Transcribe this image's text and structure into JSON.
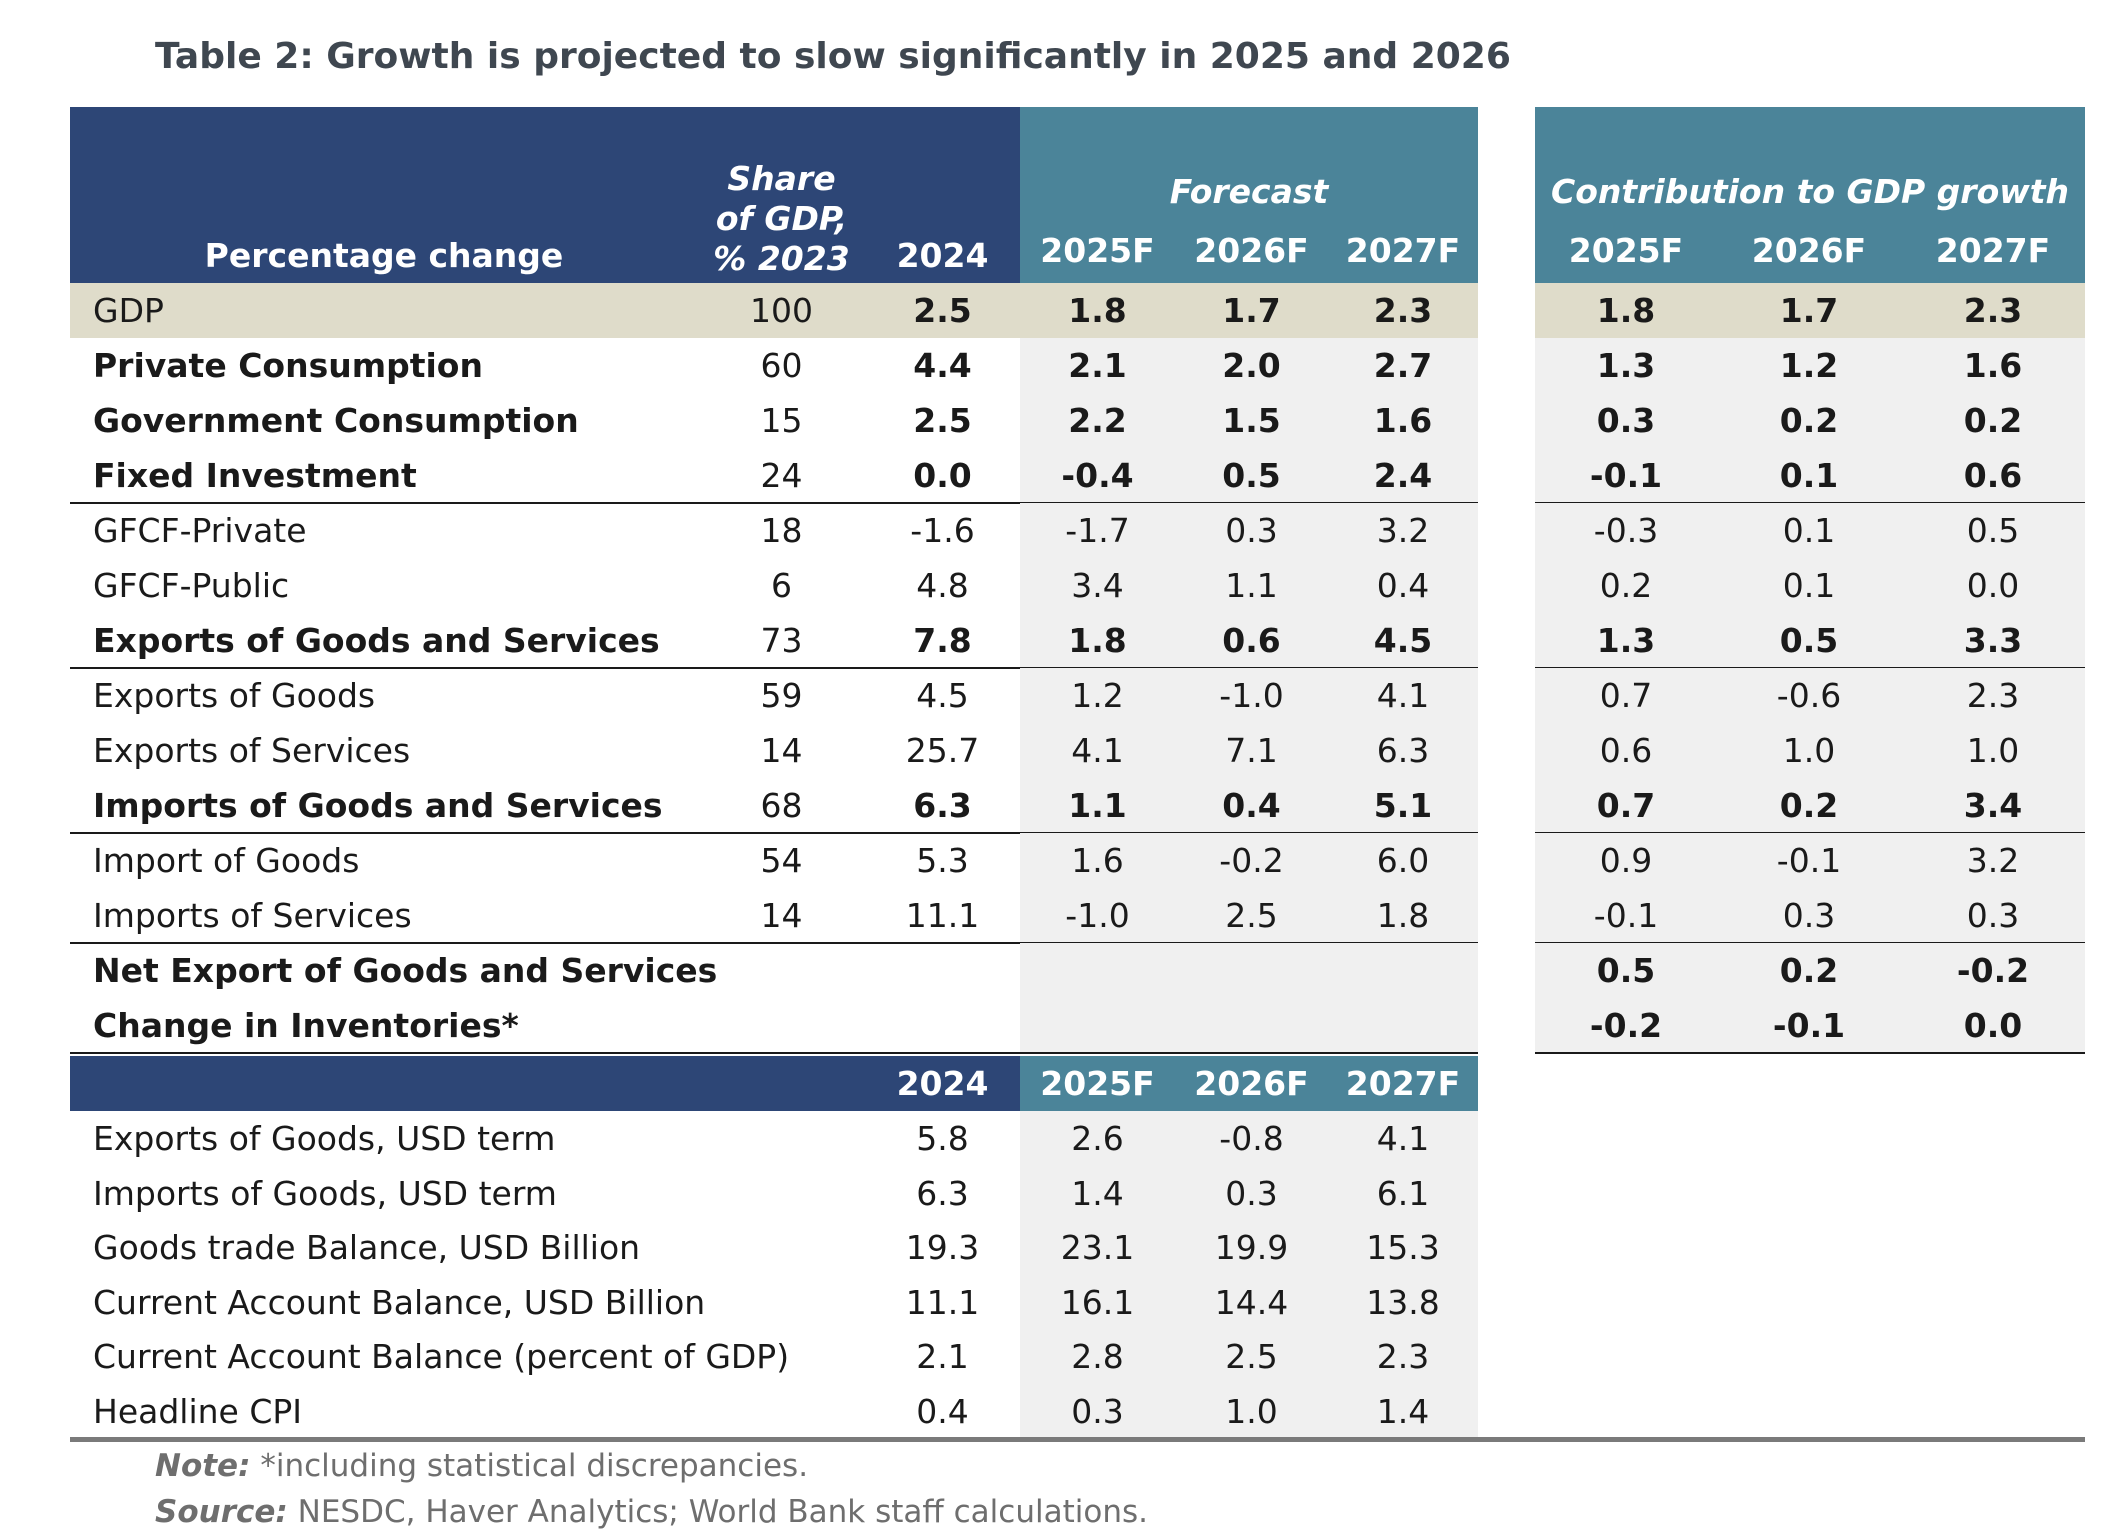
{
  "title": "Table 2: Growth is projected to slow significantly in 2025 and 2026",
  "header": {
    "percentage_change": "Percentage change",
    "share_line1": "Share",
    "share_line2": "of GDP,",
    "share_line3": "% 2023",
    "forecast": "Forecast",
    "contribution": "Contribution to GDP growth",
    "years": [
      "2024",
      "2025F",
      "2026F",
      "2027F"
    ],
    "contrib_years": [
      "2025F",
      "2026F",
      "2027F"
    ]
  },
  "rows": [
    {
      "label": "GDP",
      "share": "100",
      "v": [
        "2.5",
        "1.8",
        "1.7",
        "2.3"
      ],
      "c": [
        "1.8",
        "1.7",
        "2.3"
      ]
    },
    {
      "label": "Private Consumption",
      "share": "60",
      "v": [
        "4.4",
        "2.1",
        "2.0",
        "2.7"
      ],
      "c": [
        "1.3",
        "1.2",
        "1.6"
      ]
    },
    {
      "label": "Government Consumption",
      "share": "15",
      "v": [
        "2.5",
        "2.2",
        "1.5",
        "1.6"
      ],
      "c": [
        "0.3",
        "0.2",
        "0.2"
      ]
    },
    {
      "label": "Fixed Investment",
      "share": "24",
      "v": [
        "0.0",
        "-0.4",
        "0.5",
        "2.4"
      ],
      "c": [
        "-0.1",
        "0.1",
        "0.6"
      ]
    },
    {
      "label": "GFCF-Private",
      "share": "18",
      "v": [
        "-1.6",
        "-1.7",
        "0.3",
        "3.2"
      ],
      "c": [
        "-0.3",
        "0.1",
        "0.5"
      ]
    },
    {
      "label": "GFCF-Public",
      "share": "6",
      "v": [
        "4.8",
        "3.4",
        "1.1",
        "0.4"
      ],
      "c": [
        "0.2",
        "0.1",
        "0.0"
      ]
    },
    {
      "label": "Exports of Goods and Services",
      "share": "73",
      "v": [
        "7.8",
        "1.8",
        "0.6",
        "4.5"
      ],
      "c": [
        "1.3",
        "0.5",
        "3.3"
      ]
    },
    {
      "label": "Exports of Goods",
      "share": "59",
      "v": [
        "4.5",
        "1.2",
        "-1.0",
        "4.1"
      ],
      "c": [
        "0.7",
        "-0.6",
        "2.3"
      ]
    },
    {
      "label": "Exports of Services",
      "share": "14",
      "v": [
        "25.7",
        "4.1",
        "7.1",
        "6.3"
      ],
      "c": [
        "0.6",
        "1.0",
        "1.0"
      ]
    },
    {
      "label": "Imports of Goods and Services",
      "share": "68",
      "v": [
        "6.3",
        "1.1",
        "0.4",
        "5.1"
      ],
      "c": [
        "0.7",
        "0.2",
        "3.4"
      ]
    },
    {
      "label": "Import of Goods",
      "share": "54",
      "v": [
        "5.3",
        "1.6",
        "-0.2",
        "6.0"
      ],
      "c": [
        "0.9",
        "-0.1",
        "3.2"
      ]
    },
    {
      "label": "Imports of Services",
      "share": "14",
      "v": [
        "11.1",
        "-1.0",
        "2.5",
        "1.8"
      ],
      "c": [
        "-0.1",
        "0.3",
        "0.3"
      ]
    },
    {
      "label": "Net Export of Goods and Services",
      "c": [
        "0.5",
        "0.2",
        "-0.2"
      ]
    },
    {
      "label": "Change in Inventories*",
      "c": [
        "-0.2",
        "-0.1",
        "0.0"
      ]
    }
  ],
  "lower_header_years": [
    "2024",
    "2025F",
    "2026F",
    "2027F"
  ],
  "lower_rows": [
    {
      "label": "Exports of Goods, USD term",
      "v": [
        "5.8",
        "2.6",
        "-0.8",
        "4.1"
      ]
    },
    {
      "label": "Imports of Goods, USD term",
      "v": [
        "6.3",
        "1.4",
        "0.3",
        "6.1"
      ]
    },
    {
      "label": "Goods trade Balance, USD Billion",
      "v": [
        "19.3",
        "23.1",
        "19.9",
        "15.3"
      ]
    },
    {
      "label": "Current Account Balance, USD Billion",
      "v": [
        "11.1",
        "16.1",
        "14.4",
        "13.8"
      ]
    },
    {
      "label": "Current Account Balance (percent of GDP)",
      "v": [
        "2.1",
        "2.8",
        "2.5",
        "2.3"
      ]
    },
    {
      "label": "Headline CPI",
      "v": [
        "0.4",
        "0.3",
        "1.0",
        "1.4"
      ]
    }
  ],
  "note_label": "Note:",
  "note_text": " *including statistical discrepancies.",
  "source_label": "Source:",
  "source_text": " NESDC, Haver Analytics; World Bank staff calculations.",
  "colors": {
    "header_dark": "#2d4676",
    "header_teal": "#4b8499",
    "gdp_row": "#dfdcca",
    "forecast_shade": "#f0f0f0"
  }
}
